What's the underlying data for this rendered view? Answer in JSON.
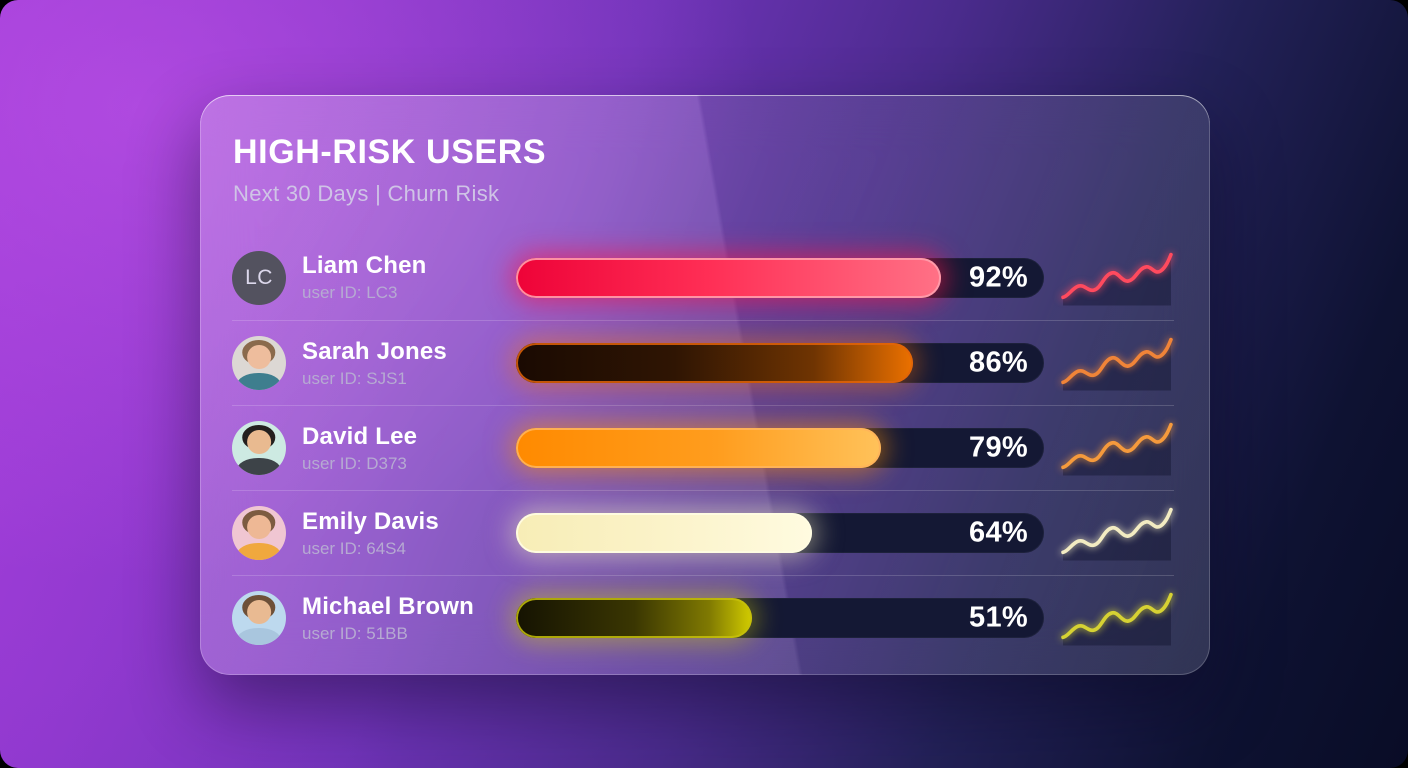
{
  "panel": {
    "title": "HIGH-RISK USERS",
    "subtitle": "Next 30 Days | Churn Risk"
  },
  "colors": {
    "track": "#141834",
    "divider": "rgba(255,255,255,0.17)",
    "name_text": "#ffffff",
    "id_text": "#b6aad2",
    "subtitle_text": "#cfc4e6"
  },
  "chart_data": {
    "type": "bar",
    "orientation": "horizontal",
    "title": "HIGH-RISK USERS",
    "subtitle": "Next 30 Days | Churn Risk",
    "categories": [
      "Liam Chen",
      "Sarah Jones",
      "David Lee",
      "Emily Davis",
      "Michael Brown"
    ],
    "values": [
      92,
      86,
      79,
      64,
      51
    ],
    "value_format": "percent",
    "user_ids": [
      "LC3",
      "SJS1",
      "D373",
      "64S4",
      "51BB"
    ],
    "sparkline_trend": "rising wavy line per row, same shape each row",
    "xlim": [
      0,
      100
    ]
  },
  "users": [
    {
      "name": "Liam Chen",
      "user_id": "user ID: LC3",
      "risk_label": "92%",
      "risk_value": 92,
      "avatar": {
        "type": "initials",
        "initials": "LC",
        "bg": "#53525f"
      },
      "bar": {
        "fill": "linear-gradient(90deg,#ee0338 0%,#ff2e55 45%,#ff7186 100%)",
        "ring": "rgba(255,158,173,0.9)",
        "glow": "rgba(255,20,70,0.6)"
      },
      "spark": "#ff4a5e"
    },
    {
      "name": "Sarah Jones",
      "user_id": "user ID: SJS1",
      "risk_label": "86%",
      "risk_value": 86,
      "avatar": {
        "type": "photo",
        "bg": "#dcd8d4",
        "hair": "#8a6a4c",
        "skin": "#eebd9d",
        "shirt": "#3e7e8e"
      },
      "bar": {
        "fill": "linear-gradient(90deg,#1a0a02 0%,#2f1503 40%,#6f3402 75%,#ec7100 100%)",
        "ring": "rgba(226,100,8,0.85)",
        "glow": "rgba(255,115,0,0.45)"
      },
      "spark": "#f08438"
    },
    {
      "name": "David Lee",
      "user_id": "user ID: D373",
      "risk_label": "79%",
      "risk_value": 79,
      "avatar": {
        "type": "photo",
        "bg": "#cdeae2",
        "hair": "#23201e",
        "skin": "#e9ba90",
        "shirt": "#3d4348"
      },
      "bar": {
        "fill": "linear-gradient(90deg,#ff8a00 0%,#ff9d1e 55%,#ffc25a 100%)",
        "ring": "rgba(255,180,90,0.9)",
        "glow": "rgba(255,145,0,0.55)"
      },
      "spark": "#f59a3c"
    },
    {
      "name": "Emily Davis",
      "user_id": "user ID: 64S4",
      "risk_label": "64%",
      "risk_value": 64,
      "avatar": {
        "type": "photo",
        "bg": "#f0c6d2",
        "hair": "#7c5b40",
        "skin": "#eeb895",
        "shirt": "#f0a83e"
      },
      "bar": {
        "fill": "linear-gradient(90deg,#f7edb6 0%,#fbf3c9 50%,#fffbe0 100%)",
        "ring": "rgba(255,252,225,0.95)",
        "glow": "rgba(248,240,190,0.5)"
      },
      "spark": "#f3ecc2"
    },
    {
      "name": "Michael Brown",
      "user_id": "user ID: 51BB",
      "risk_label": "51%",
      "risk_value": 51,
      "avatar": {
        "type": "photo",
        "bg": "#bdd9ee",
        "hair": "#6d5038",
        "skin": "#e9ba92",
        "shirt": "#a9c6de"
      },
      "bar": {
        "fill": "linear-gradient(90deg,#151302 0%,#3a3602 50%,#807a02 82%,#d2cc00 100%)",
        "ring": "rgba(198,192,10,0.85)",
        "glow": "rgba(215,210,0,0.45)"
      },
      "spark": "#d6d233"
    }
  ]
}
